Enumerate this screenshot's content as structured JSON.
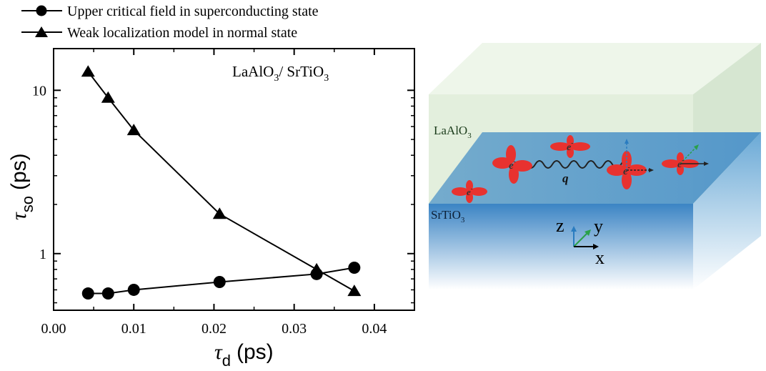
{
  "chart_data": {
    "type": "scatter",
    "xlabel_main": "τ",
    "xlabel_sub": "d",
    "xlabel_unit": "(ps)",
    "ylabel_main": "τ",
    "ylabel_sub": "so",
    "ylabel_unit": "(ps)",
    "xlim": [
      0.0,
      0.045
    ],
    "ylim": [
      0.45,
      18
    ],
    "yscale": "log",
    "xticks": [
      0.0,
      0.01,
      0.02,
      0.03,
      0.04
    ],
    "xtick_labels": [
      "0.00",
      "0.01",
      "0.02",
      "0.03",
      "0.04"
    ],
    "yticks": [
      1,
      10
    ],
    "ytick_labels": [
      "1",
      "10"
    ],
    "annotation_parts": [
      "LaAlO",
      "3",
      "/ SrTiO",
      "3"
    ],
    "legend_position": "top-left",
    "series": [
      {
        "name": "Upper critical field in superconducting state",
        "marker": "circle",
        "color": "#000000",
        "x": [
          0.0043,
          0.0068,
          0.01,
          0.0207,
          0.0328,
          0.0375
        ],
        "y": [
          0.57,
          0.57,
          0.6,
          0.67,
          0.75,
          0.82
        ]
      },
      {
        "name": "Weak localization model in normal state",
        "marker": "triangle",
        "color": "#000000",
        "x": [
          0.0043,
          0.0068,
          0.01,
          0.0207,
          0.0328,
          0.0375
        ],
        "y": [
          13.0,
          9.0,
          5.7,
          1.75,
          0.8,
          0.59
        ]
      }
    ]
  },
  "illustration": {
    "top_layer_parts": [
      "LaAlO",
      "3"
    ],
    "bottom_layer_parts": [
      "SrTiO",
      "3"
    ],
    "electron_symbol": "e",
    "electron_superscript": "-",
    "phonon_symbol": "q",
    "axis_z": "z",
    "axis_y": "y",
    "axis_x": "x",
    "colors": {
      "top_layer": "#e3efdd",
      "interface": "#5aa0cc",
      "substrate": "#3d86c6",
      "orbital": "#e8322f",
      "y_axis_arrow": "#2aa04a",
      "z_axis_arrow": "#2a7cc0"
    }
  }
}
